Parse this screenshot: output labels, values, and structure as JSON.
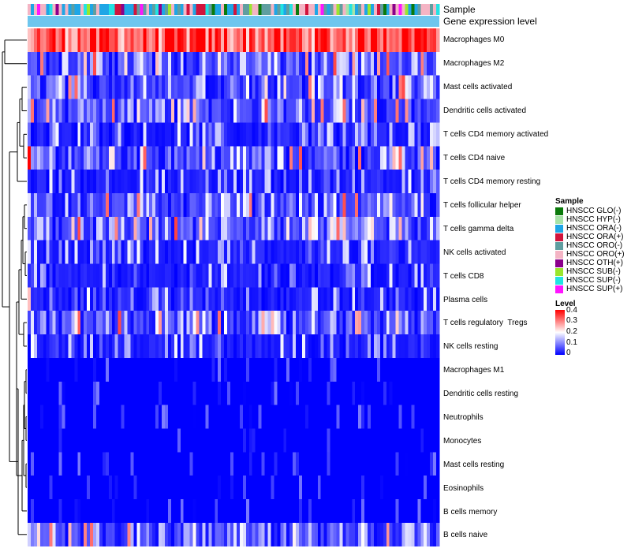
{
  "chart_data": {
    "type": "heatmap",
    "title": "",
    "annotation_rows": [
      "Sample",
      "Gene expression level"
    ],
    "rows": [
      "Macrophages M0",
      "Macrophages M2",
      "Mast cells activated",
      "Dendritic cells activated",
      "T cells CD4 memory activated",
      "T cells CD4 naive",
      "T cells CD4 memory resting",
      "T cells follicular helper",
      "T cells gamma delta",
      "NK cells activated",
      "T cells CD8",
      "Plasma cells",
      "T cells regulatory  Tregs",
      "NK cells resting",
      "Macrophages M1",
      "Dendritic cells resting",
      "Neutrophils",
      "Monocytes",
      "Mast cells resting",
      "Eosinophils",
      "B cells memory",
      "B cells naive"
    ],
    "row_mean_levels": [
      0.33,
      0.11,
      0.08,
      0.1,
      0.05,
      0.07,
      0.04,
      0.07,
      0.06,
      0.04,
      0.04,
      0.05,
      0.06,
      0.04,
      0.02,
      0.02,
      0.01,
      0.015,
      0.01,
      0.005,
      0.005,
      0.08
    ],
    "n_samples": 132,
    "sample_legend": {
      "title": "Sample",
      "items": [
        {
          "label": "HNSCC GLO(-)",
          "color": "#0b7a0b"
        },
        {
          "label": "HNSCC HYP(-)",
          "color": "#a7e3a7"
        },
        {
          "label": "HNSCC ORA(-)",
          "color": "#1ea6e6"
        },
        {
          "label": "HNSCC ORA(+)",
          "color": "#d2143c"
        },
        {
          "label": "HNSCC ORO(-)",
          "color": "#5f9ea0"
        },
        {
          "label": "HNSCC ORO(+)",
          "color": "#f4b4c4"
        },
        {
          "label": "HNSCC OTH(+)",
          "color": "#8b008b"
        },
        {
          "label": "HNSCC SUB(-)",
          "color": "#9be62d"
        },
        {
          "label": "HNSCC SUP(-)",
          "color": "#22e3e3"
        },
        {
          "label": "HNSCC SUP(+)",
          "color": "#ff14ff"
        }
      ]
    },
    "level_legend": {
      "title": "Level",
      "ticks": [
        "0.4",
        "0.3",
        "0.2",
        "0.1",
        "0"
      ],
      "range": [
        0,
        0.4
      ],
      "colors": [
        "#0000ff",
        "#ffffff",
        "#ff0000"
      ]
    },
    "gene_expression_level_color": "#6ec6ee"
  }
}
